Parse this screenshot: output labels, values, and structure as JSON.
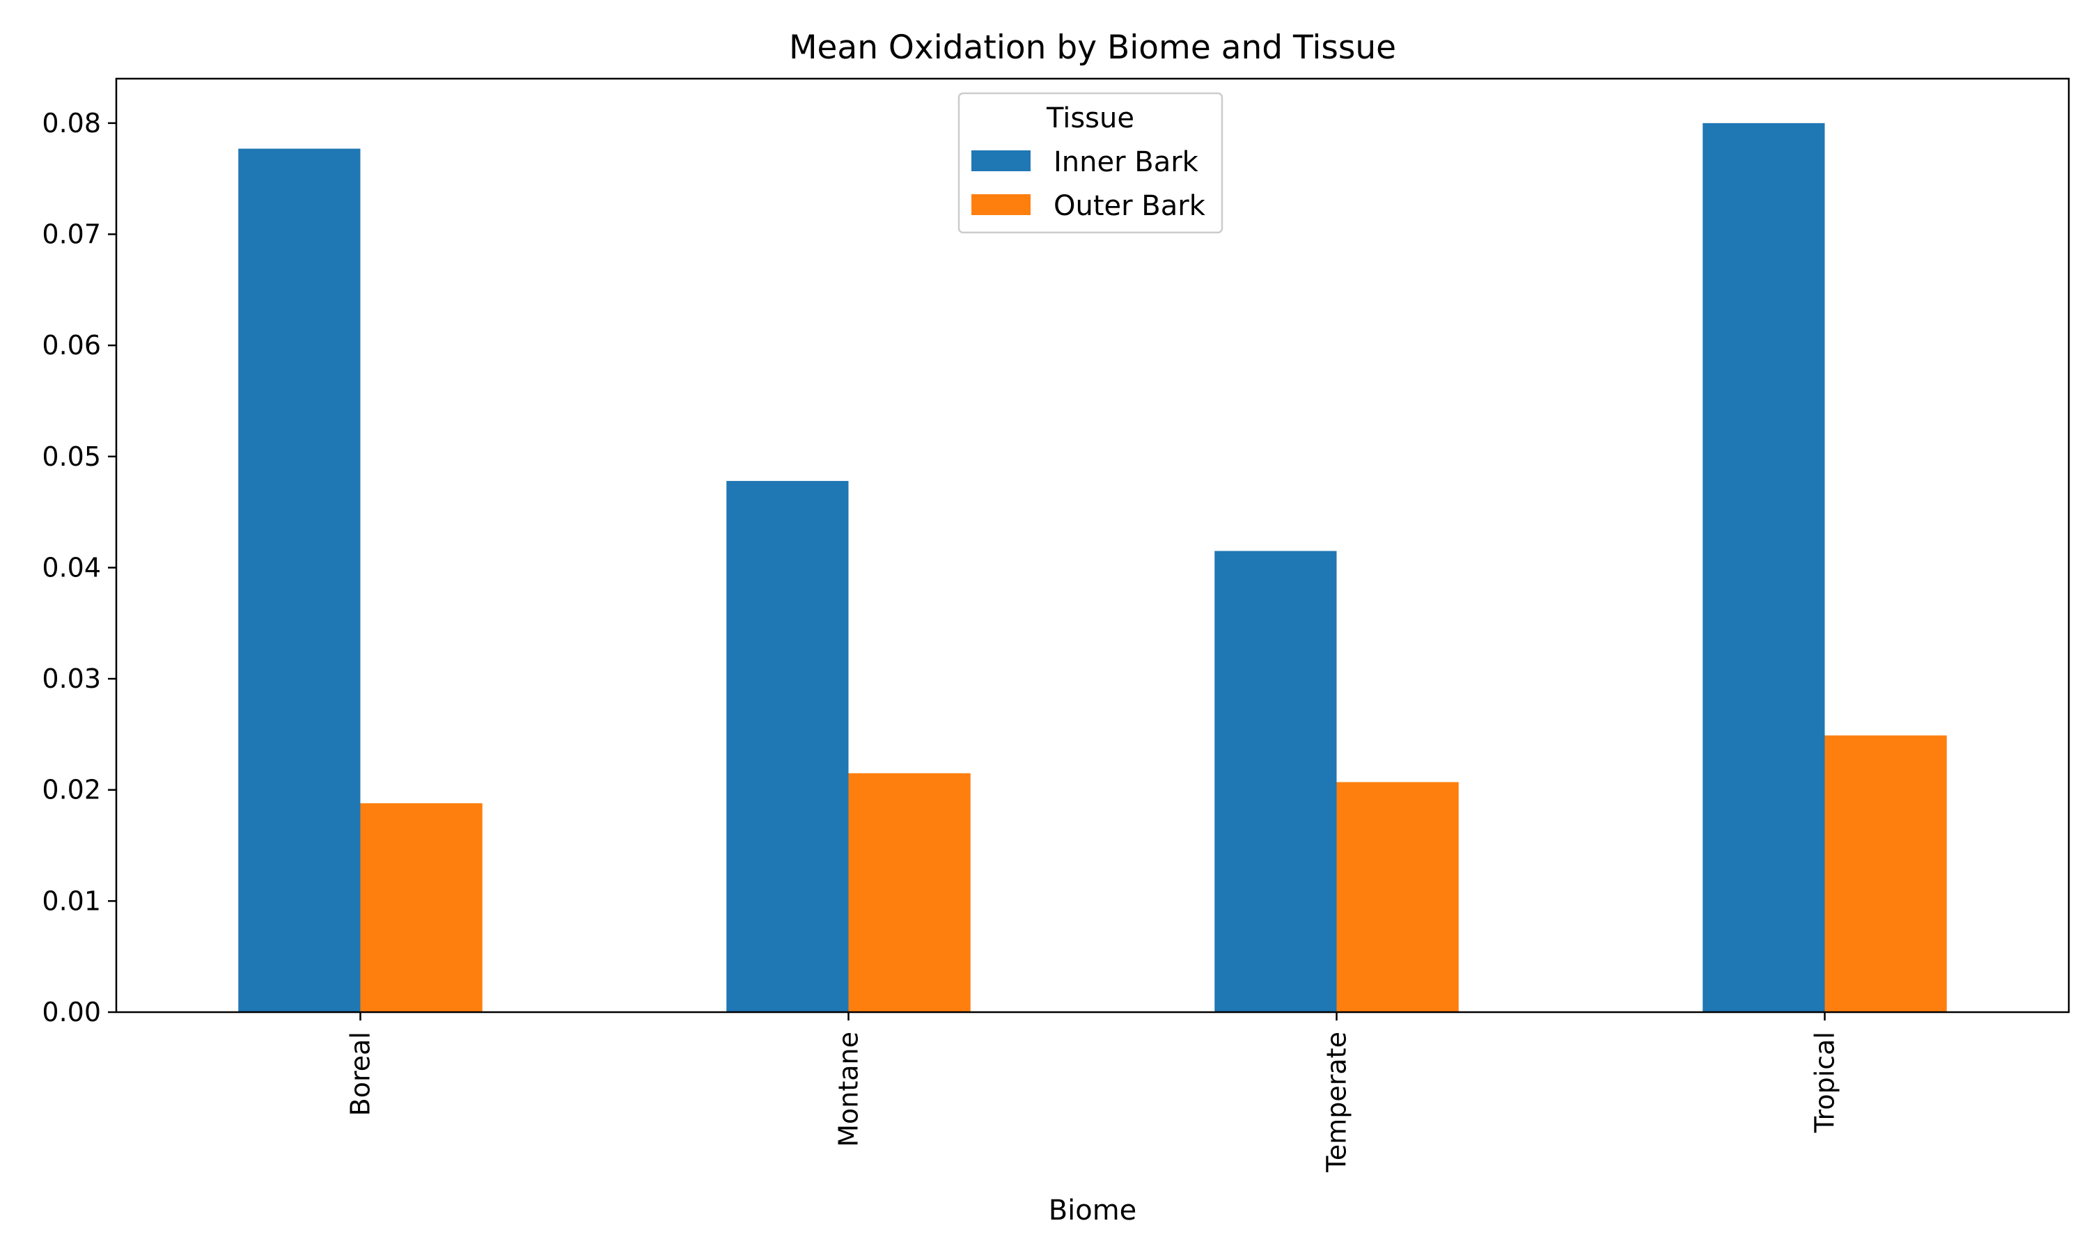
{
  "chart_data": {
    "type": "bar",
    "title": "Mean Oxidation by Biome and Tissue",
    "xlabel": "Biome",
    "ylabel": "",
    "categories": [
      "Boreal",
      "Montane",
      "Temperate",
      "Tropical"
    ],
    "series": [
      {
        "name": "Inner Bark",
        "color": "#1f77b4",
        "values": [
          0.0777,
          0.0478,
          0.0415,
          0.08
        ]
      },
      {
        "name": "Outer Bark",
        "color": "#ff7f0e",
        "values": [
          0.0188,
          0.0215,
          0.0207,
          0.0249
        ]
      }
    ],
    "ylim": [
      0,
      0.084
    ],
    "yticks": [
      "0.00",
      "0.01",
      "0.02",
      "0.03",
      "0.04",
      "0.05",
      "0.06",
      "0.07",
      "0.08"
    ],
    "legend": {
      "title": "Tissue",
      "placement": "upper-center"
    },
    "grid": false
  }
}
